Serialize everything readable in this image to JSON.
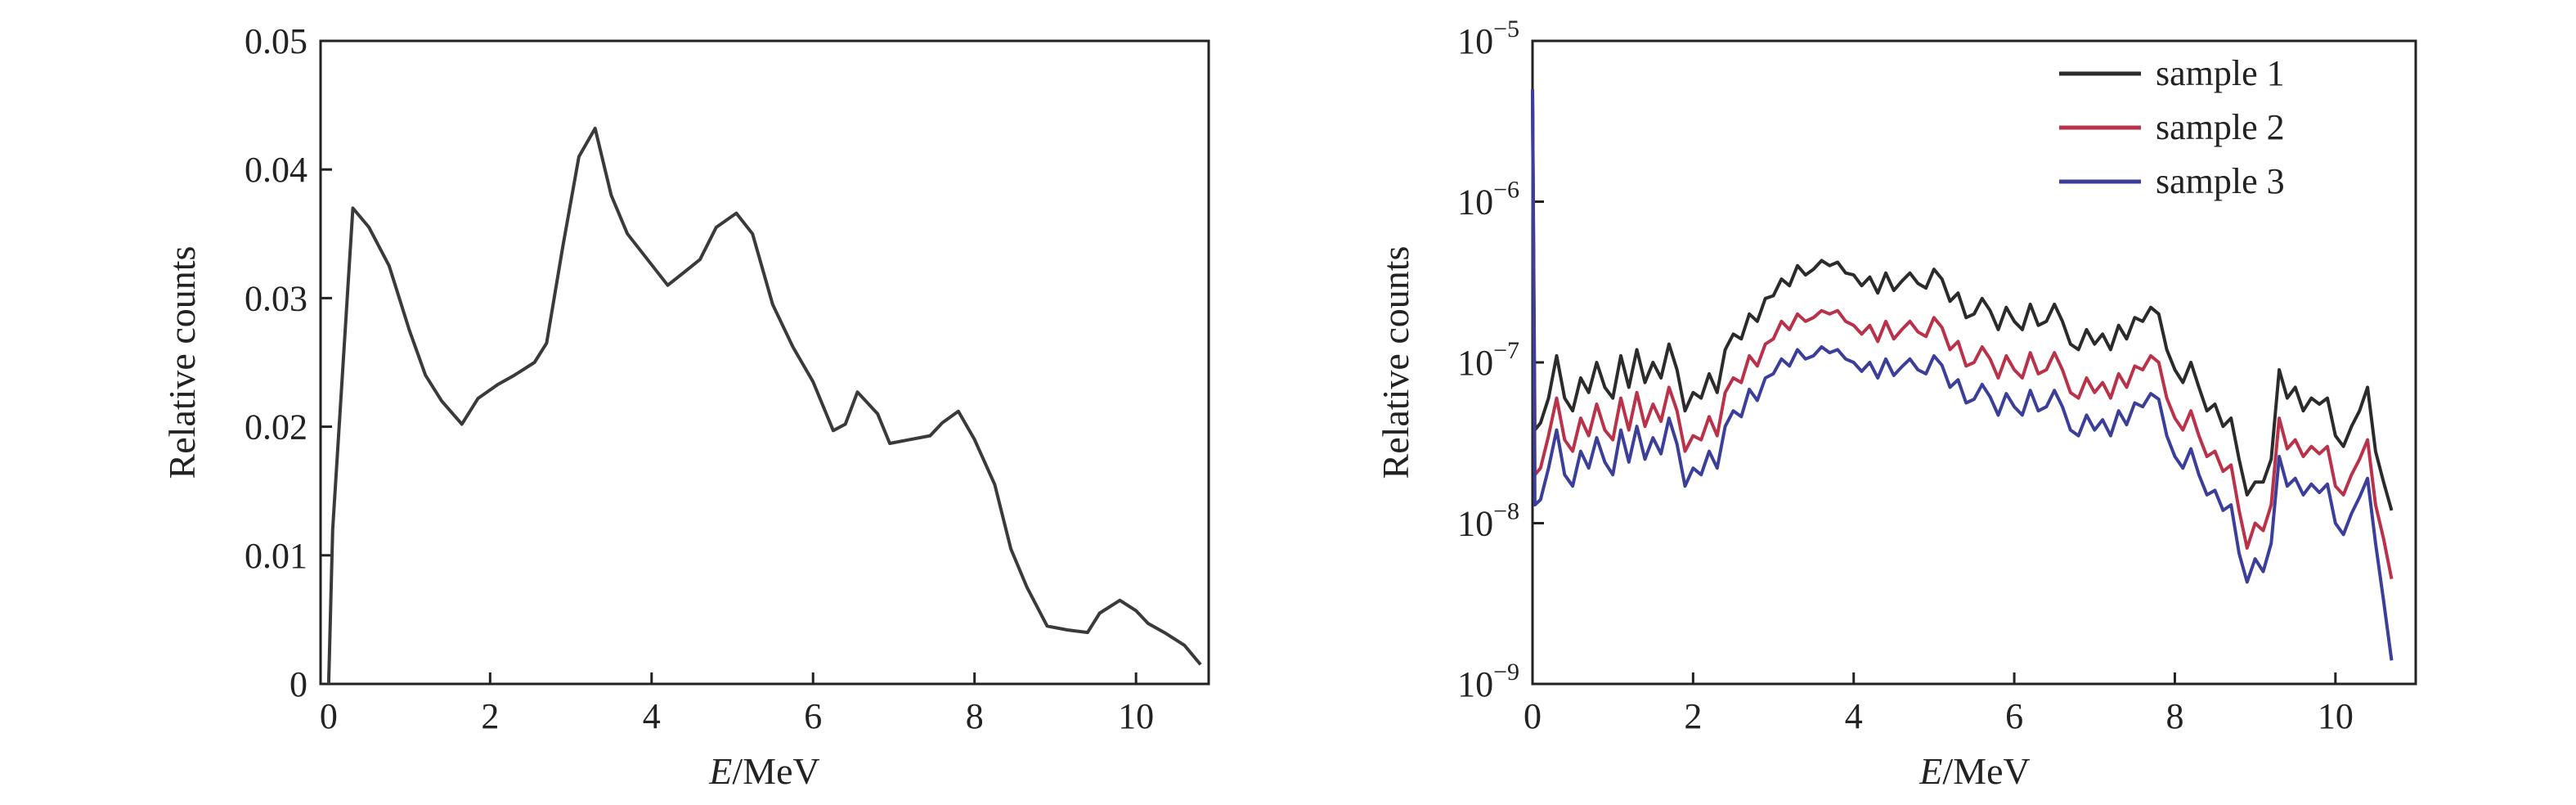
{
  "chart_data": [
    {
      "type": "line",
      "title": "",
      "xlabel_italic": "E",
      "xlabel_rest": "/MeV",
      "ylabel": "Relative counts",
      "xlim": [
        -0.1,
        10.9
      ],
      "ylim": [
        0,
        0.05
      ],
      "x_ticks": [
        0,
        2,
        4,
        6,
        8,
        10
      ],
      "x_tick_labels": [
        "0",
        "2",
        "4",
        "6",
        "8",
        "10"
      ],
      "y_ticks": [
        0,
        0.01,
        0.02,
        0.03,
        0.04,
        0.05
      ],
      "y_tick_labels": [
        "0",
        "0.01",
        "0.02",
        "0.03",
        "0.04",
        "0.05"
      ],
      "grid": false,
      "series": [
        {
          "color": "#3a3a3a",
          "x": [
            0.0,
            0.05,
            0.3,
            0.5,
            0.75,
            1.0,
            1.2,
            1.4,
            1.65,
            1.85,
            2.1,
            2.3,
            2.55,
            2.7,
            2.9,
            3.1,
            3.3,
            3.5,
            3.7,
            3.95,
            4.2,
            4.4,
            4.6,
            4.8,
            5.05,
            5.25,
            5.5,
            5.75,
            6.0,
            6.25,
            6.4,
            6.55,
            6.8,
            6.95,
            7.2,
            7.45,
            7.6,
            7.8,
            8.0,
            8.25,
            8.45,
            8.65,
            8.9,
            9.15,
            9.4,
            9.55,
            9.8,
            10.0,
            10.15,
            10.35,
            10.6,
            10.8
          ],
          "values": [
            0.0,
            0.012,
            0.037,
            0.0355,
            0.0325,
            0.0275,
            0.024,
            0.022,
            0.0202,
            0.0222,
            0.0233,
            0.024,
            0.025,
            0.0265,
            0.034,
            0.041,
            0.0432,
            0.038,
            0.035,
            0.033,
            0.031,
            0.032,
            0.033,
            0.0355,
            0.0366,
            0.035,
            0.0295,
            0.0262,
            0.0235,
            0.0197,
            0.0202,
            0.0227,
            0.021,
            0.0187,
            0.019,
            0.0193,
            0.0203,
            0.0212,
            0.019,
            0.0155,
            0.0105,
            0.0075,
            0.0045,
            0.0042,
            0.004,
            0.0055,
            0.0065,
            0.0057,
            0.0047,
            0.004,
            0.003,
            0.0015
          ]
        }
      ]
    },
    {
      "type": "line",
      "title": "",
      "xlabel_italic": "E",
      "xlabel_rest": "/MeV",
      "ylabel": "Relative counts",
      "yscale": "log",
      "xlim": [
        0,
        11
      ],
      "ylim": [
        1e-09,
        1e-05
      ],
      "x_ticks": [
        0,
        2,
        4,
        6,
        8,
        10
      ],
      "x_tick_labels": [
        "0",
        "2",
        "4",
        "6",
        "8",
        "10"
      ],
      "y_ticks": [
        1e-09,
        1e-08,
        1e-07,
        1e-06,
        1e-05
      ],
      "y_tick_base": "10",
      "y_tick_exponents": [
        "−9",
        "−8",
        "−7",
        "−6",
        "−5"
      ],
      "grid": false,
      "legend": "top-right",
      "x": [
        0.0,
        0.03,
        0.1,
        0.2,
        0.3,
        0.4,
        0.5,
        0.6,
        0.7,
        0.8,
        0.9,
        1.0,
        1.1,
        1.2,
        1.3,
        1.4,
        1.5,
        1.6,
        1.7,
        1.8,
        1.9,
        2.0,
        2.1,
        2.2,
        2.3,
        2.4,
        2.5,
        2.6,
        2.7,
        2.8,
        2.9,
        3.0,
        3.1,
        3.2,
        3.3,
        3.4,
        3.5,
        3.6,
        3.7,
        3.8,
        3.9,
        4.0,
        4.1,
        4.2,
        4.3,
        4.4,
        4.5,
        4.6,
        4.7,
        4.8,
        4.9,
        5.0,
        5.1,
        5.2,
        5.3,
        5.4,
        5.5,
        5.6,
        5.7,
        5.8,
        5.9,
        6.0,
        6.1,
        6.2,
        6.3,
        6.4,
        6.5,
        6.6,
        6.7,
        6.8,
        6.9,
        7.0,
        7.1,
        7.2,
        7.3,
        7.4,
        7.5,
        7.6,
        7.7,
        7.8,
        7.9,
        8.0,
        8.1,
        8.2,
        8.3,
        8.4,
        8.5,
        8.6,
        8.7,
        8.8,
        8.9,
        9.0,
        9.1,
        9.2,
        9.3,
        9.4,
        9.5,
        9.6,
        9.7,
        9.8,
        9.9,
        10.0,
        10.1,
        10.2,
        10.3,
        10.4,
        10.5,
        10.6,
        10.7
      ],
      "series": [
        {
          "name": "sample 1",
          "color": "#2b2b2b",
          "values": [
            5e-06,
            3.8e-08,
            4.2e-08,
            6e-08,
            1.1e-07,
            6e-08,
            5e-08,
            8e-08,
            6.5e-08,
            1e-07,
            7e-08,
            6e-08,
            1.1e-07,
            7e-08,
            1.2e-07,
            7.5e-08,
            1e-07,
            8e-08,
            1.3e-07,
            9e-08,
            5e-08,
            6.5e-08,
            6e-08,
            8.5e-08,
            6.5e-08,
            1.2e-07,
            1.5e-07,
            1.4e-07,
            2e-07,
            1.8e-07,
            2.5e-07,
            2.6e-07,
            3.3e-07,
            3e-07,
            4e-07,
            3.5e-07,
            3.8e-07,
            4.3e-07,
            4e-07,
            4.2e-07,
            3.6e-07,
            3.5e-07,
            3e-07,
            3.4e-07,
            2.7e-07,
            3.6e-07,
            2.8e-07,
            3.2e-07,
            3.6e-07,
            3.1e-07,
            2.9e-07,
            3.8e-07,
            3.3e-07,
            2.4e-07,
            2.7e-07,
            1.9e-07,
            2e-07,
            2.5e-07,
            2.1e-07,
            1.6e-07,
            2.2e-07,
            1.8e-07,
            1.6e-07,
            2.3e-07,
            1.7e-07,
            1.8e-07,
            2.3e-07,
            1.8e-07,
            1.3e-07,
            1.2e-07,
            1.6e-07,
            1.3e-07,
            1.5e-07,
            1.2e-07,
            1.7e-07,
            1.4e-07,
            1.9e-07,
            1.8e-07,
            2.2e-07,
            2e-07,
            1.2e-07,
            9e-08,
            7.5e-08,
            1e-07,
            7e-08,
            5e-08,
            5.5e-08,
            4e-08,
            4.5e-08,
            2.5e-08,
            1.5e-08,
            1.8e-08,
            1.8e-08,
            2.5e-08,
            9e-08,
            6e-08,
            7e-08,
            5e-08,
            6e-08,
            5.5e-08,
            6e-08,
            3.5e-08,
            3e-08,
            4e-08,
            5e-08,
            7e-08,
            2.8e-08,
            1.8e-08,
            1.2e-08
          ]
        },
        {
          "name": "sample 2",
          "color": "#b9324a",
          "values": [
            5e-06,
            2e-08,
            2.2e-08,
            3.5e-08,
            6e-08,
            3.3e-08,
            2.8e-08,
            4.5e-08,
            3.5e-08,
            5.5e-08,
            3.8e-08,
            3.3e-08,
            6e-08,
            3.8e-08,
            6.5e-08,
            4e-08,
            5.5e-08,
            4.3e-08,
            7e-08,
            5e-08,
            2.8e-08,
            3.5e-08,
            3.3e-08,
            4.6e-08,
            3.5e-08,
            6.5e-08,
            8e-08,
            7.5e-08,
            1.1e-07,
            9.5e-08,
            1.3e-07,
            1.4e-07,
            1.8e-07,
            1.6e-07,
            2e-07,
            1.8e-07,
            1.9e-07,
            2.1e-07,
            2e-07,
            2.1e-07,
            1.8e-07,
            1.7e-07,
            1.5e-07,
            1.7e-07,
            1.35e-07,
            1.8e-07,
            1.4e-07,
            1.6e-07,
            1.8e-07,
            1.55e-07,
            1.45e-07,
            1.9e-07,
            1.65e-07,
            1.2e-07,
            1.35e-07,
            9.5e-08,
            1e-07,
            1.25e-07,
            1.05e-07,
            8e-08,
            1.1e-07,
            9e-08,
            8e-08,
            1.15e-07,
            8.5e-08,
            9e-08,
            1.15e-07,
            9e-08,
            6.5e-08,
            6e-08,
            8e-08,
            6.5e-08,
            7.5e-08,
            6e-08,
            8.5e-08,
            7e-08,
            9.5e-08,
            9e-08,
            1.1e-07,
            1e-07,
            6e-08,
            4.5e-08,
            3.8e-08,
            5e-08,
            3.5e-08,
            2.6e-08,
            2.8e-08,
            2.1e-08,
            2.3e-08,
            1.2e-08,
            7e-09,
            1e-08,
            9e-09,
            1.3e-08,
            4.5e-08,
            2.9e-08,
            3.3e-08,
            2.6e-08,
            3e-08,
            2.7e-08,
            3e-08,
            1.7e-08,
            1.5e-08,
            2e-08,
            2.5e-08,
            3.3e-08,
            1.3e-08,
            8e-09,
            4.5e-09
          ]
        },
        {
          "name": "sample 3",
          "color": "#3b3f9a",
          "values": [
            5e-06,
            1.3e-08,
            1.4e-08,
            2.2e-08,
            3.8e-08,
            2e-08,
            1.7e-08,
            2.8e-08,
            2.2e-08,
            3.4e-08,
            2.4e-08,
            2e-08,
            3.8e-08,
            2.4e-08,
            4e-08,
            2.5e-08,
            3.4e-08,
            2.7e-08,
            4.5e-08,
            3.1e-08,
            1.7e-08,
            2.2e-08,
            2e-08,
            2.8e-08,
            2.2e-08,
            4e-08,
            5e-08,
            4.6e-08,
            6.8e-08,
            5.8e-08,
            8e-08,
            8.5e-08,
            1.05e-07,
            9.5e-08,
            1.2e-07,
            1.05e-07,
            1.1e-07,
            1.25e-07,
            1.15e-07,
            1.2e-07,
            1.05e-07,
            1e-07,
            8.8e-08,
            1e-07,
            8e-08,
            1.05e-07,
            8.3e-08,
            9.4e-08,
            1.05e-07,
            9e-08,
            8.5e-08,
            1.1e-07,
            9.6e-08,
            7e-08,
            7.8e-08,
            5.6e-08,
            5.9e-08,
            7.3e-08,
            6.1e-08,
            4.7e-08,
            6.4e-08,
            5.3e-08,
            4.7e-08,
            6.7e-08,
            5e-08,
            5.3e-08,
            6.7e-08,
            5.3e-08,
            3.8e-08,
            3.5e-08,
            4.7e-08,
            3.8e-08,
            4.4e-08,
            3.5e-08,
            5e-08,
            4.1e-08,
            5.6e-08,
            5.3e-08,
            6.4e-08,
            5.9e-08,
            3.5e-08,
            2.6e-08,
            2.2e-08,
            2.9e-08,
            2e-08,
            1.5e-08,
            1.6e-08,
            1.2e-08,
            1.3e-08,
            6.5e-09,
            4.3e-09,
            6e-09,
            5e-09,
            7.5e-09,
            2.6e-08,
            1.7e-08,
            1.9e-08,
            1.5e-08,
            1.75e-08,
            1.55e-08,
            1.75e-08,
            1e-08,
            8.5e-09,
            1.15e-08,
            1.45e-08,
            1.9e-08,
            7.5e-09,
            3.3e-09,
            1.4e-09
          ]
        }
      ]
    }
  ]
}
